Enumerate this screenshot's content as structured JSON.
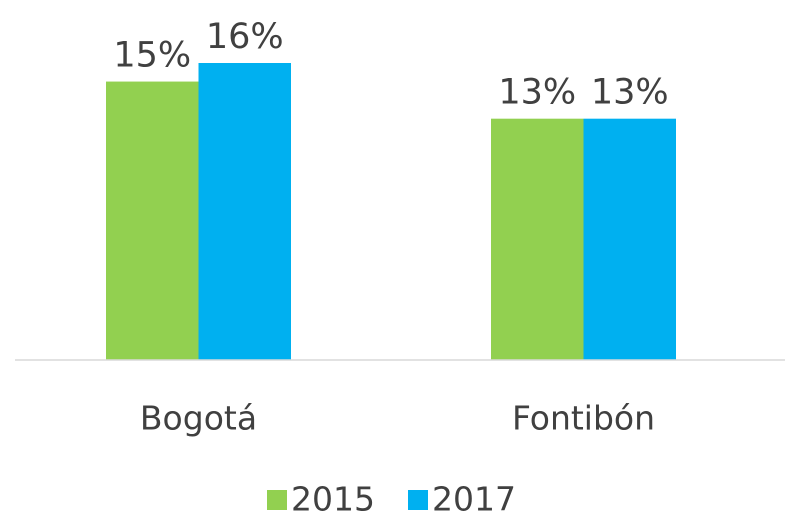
{
  "chart_data": {
    "type": "bar",
    "categories": [
      "Bogotá",
      "Fontibón"
    ],
    "series": [
      {
        "name": "2015",
        "color": "#92d050",
        "values": [
          15,
          13
        ],
        "value_labels": [
          "15%",
          "13%"
        ]
      },
      {
        "name": "2017",
        "color": "#00b0f0",
        "values": [
          16,
          13
        ],
        "value_labels": [
          "16%",
          "13%"
        ]
      }
    ]
  }
}
